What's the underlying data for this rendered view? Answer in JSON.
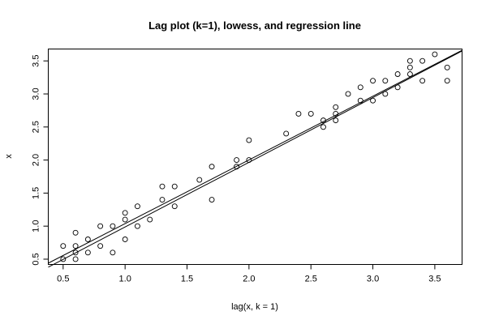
{
  "chart_data": {
    "type": "scatter",
    "title": "Lag plot (k=1), lowess, and regression line",
    "xlabel": "lag(x, k = 1)",
    "ylabel": "x",
    "xlim": [
      0.38,
      3.72
    ],
    "ylim": [
      0.42,
      3.68
    ],
    "xticks": [
      0.5,
      1.0,
      1.5,
      2.0,
      2.5,
      3.0,
      3.5
    ],
    "xtick_labels": [
      "0.5",
      "1.0",
      "1.5",
      "2.0",
      "2.5",
      "3.0",
      "3.5"
    ],
    "yticks": [
      0.5,
      1.0,
      1.5,
      2.0,
      2.5,
      3.0,
      3.5
    ],
    "ytick_labels": [
      "0.5",
      "1.0",
      "1.5",
      "2.0",
      "2.5",
      "3.0",
      "3.5"
    ],
    "grid": false,
    "points": [
      [
        0.5,
        0.7
      ],
      [
        0.5,
        0.5
      ],
      [
        0.6,
        0.9
      ],
      [
        0.6,
        0.7
      ],
      [
        0.6,
        0.6
      ],
      [
        0.6,
        0.5
      ],
      [
        0.7,
        0.8
      ],
      [
        0.7,
        0.6
      ],
      [
        0.8,
        1.0
      ],
      [
        0.8,
        0.7
      ],
      [
        0.9,
        1.0
      ],
      [
        0.9,
        0.6
      ],
      [
        1.0,
        1.2
      ],
      [
        1.0,
        1.1
      ],
      [
        1.0,
        0.8
      ],
      [
        1.1,
        1.3
      ],
      [
        1.1,
        1.0
      ],
      [
        1.2,
        1.1
      ],
      [
        1.3,
        1.6
      ],
      [
        1.3,
        1.4
      ],
      [
        1.4,
        1.6
      ],
      [
        1.4,
        1.3
      ],
      [
        1.6,
        1.7
      ],
      [
        1.7,
        1.9
      ],
      [
        1.7,
        1.4
      ],
      [
        1.9,
        2.0
      ],
      [
        1.9,
        1.9
      ],
      [
        2.0,
        2.3
      ],
      [
        2.0,
        2.0
      ],
      [
        2.3,
        2.4
      ],
      [
        2.4,
        2.7
      ],
      [
        2.5,
        2.7
      ],
      [
        2.6,
        2.6
      ],
      [
        2.6,
        2.5
      ],
      [
        2.7,
        2.8
      ],
      [
        2.7,
        2.7
      ],
      [
        2.7,
        2.6
      ],
      [
        2.8,
        3.0
      ],
      [
        2.9,
        3.1
      ],
      [
        2.9,
        2.9
      ],
      [
        3.0,
        3.2
      ],
      [
        3.0,
        2.9
      ],
      [
        3.1,
        3.2
      ],
      [
        3.1,
        3.0
      ],
      [
        3.2,
        3.3
      ],
      [
        3.2,
        3.1
      ],
      [
        3.3,
        3.5
      ],
      [
        3.3,
        3.4
      ],
      [
        3.3,
        3.3
      ],
      [
        3.4,
        3.5
      ],
      [
        3.4,
        3.2
      ],
      [
        3.5,
        3.6
      ],
      [
        3.6,
        3.4
      ],
      [
        3.6,
        3.2
      ]
    ],
    "lines": [
      {
        "kind": "regression",
        "x": [
          0.38,
          3.72
        ],
        "y": [
          0.38,
          3.65
        ]
      },
      {
        "kind": "lowess",
        "x": [
          0.38,
          3.72
        ],
        "y": [
          0.44,
          3.66
        ]
      }
    ]
  }
}
